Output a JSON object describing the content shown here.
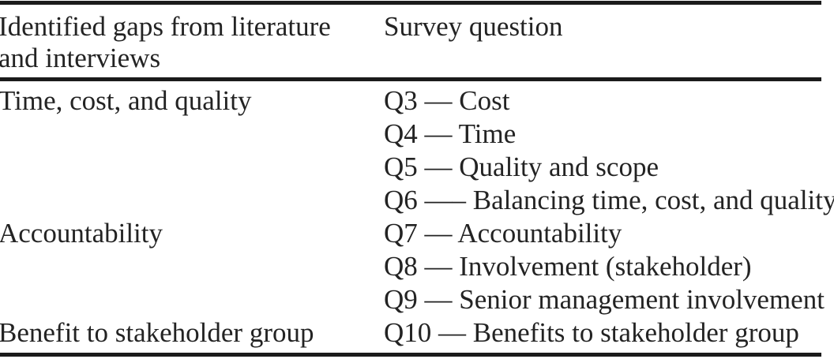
{
  "table": {
    "header": {
      "gaps_line1": "Identified gaps from literature",
      "gaps_line2": "and interviews",
      "survey": "Survey question"
    },
    "groups": [
      {
        "gap": "Time, cost, and quality",
        "questions": [
          "Q3 — Cost",
          "Q4 — Time",
          "Q5 — Quality and scope",
          "Q6 —– Balancing time, cost, and quality"
        ]
      },
      {
        "gap": "Accountability",
        "questions": [
          "Q7 — Accountability",
          "Q8 — Involvement (stakeholder)",
          "Q9 — Senior management involvement"
        ]
      },
      {
        "gap": "Benefit to stakeholder group",
        "questions": [
          "Q10 — Benefits to stakeholder group"
        ]
      }
    ],
    "colors": {
      "text": "#232323",
      "rule": "#1b1b1b",
      "background": "#ffffff"
    }
  }
}
